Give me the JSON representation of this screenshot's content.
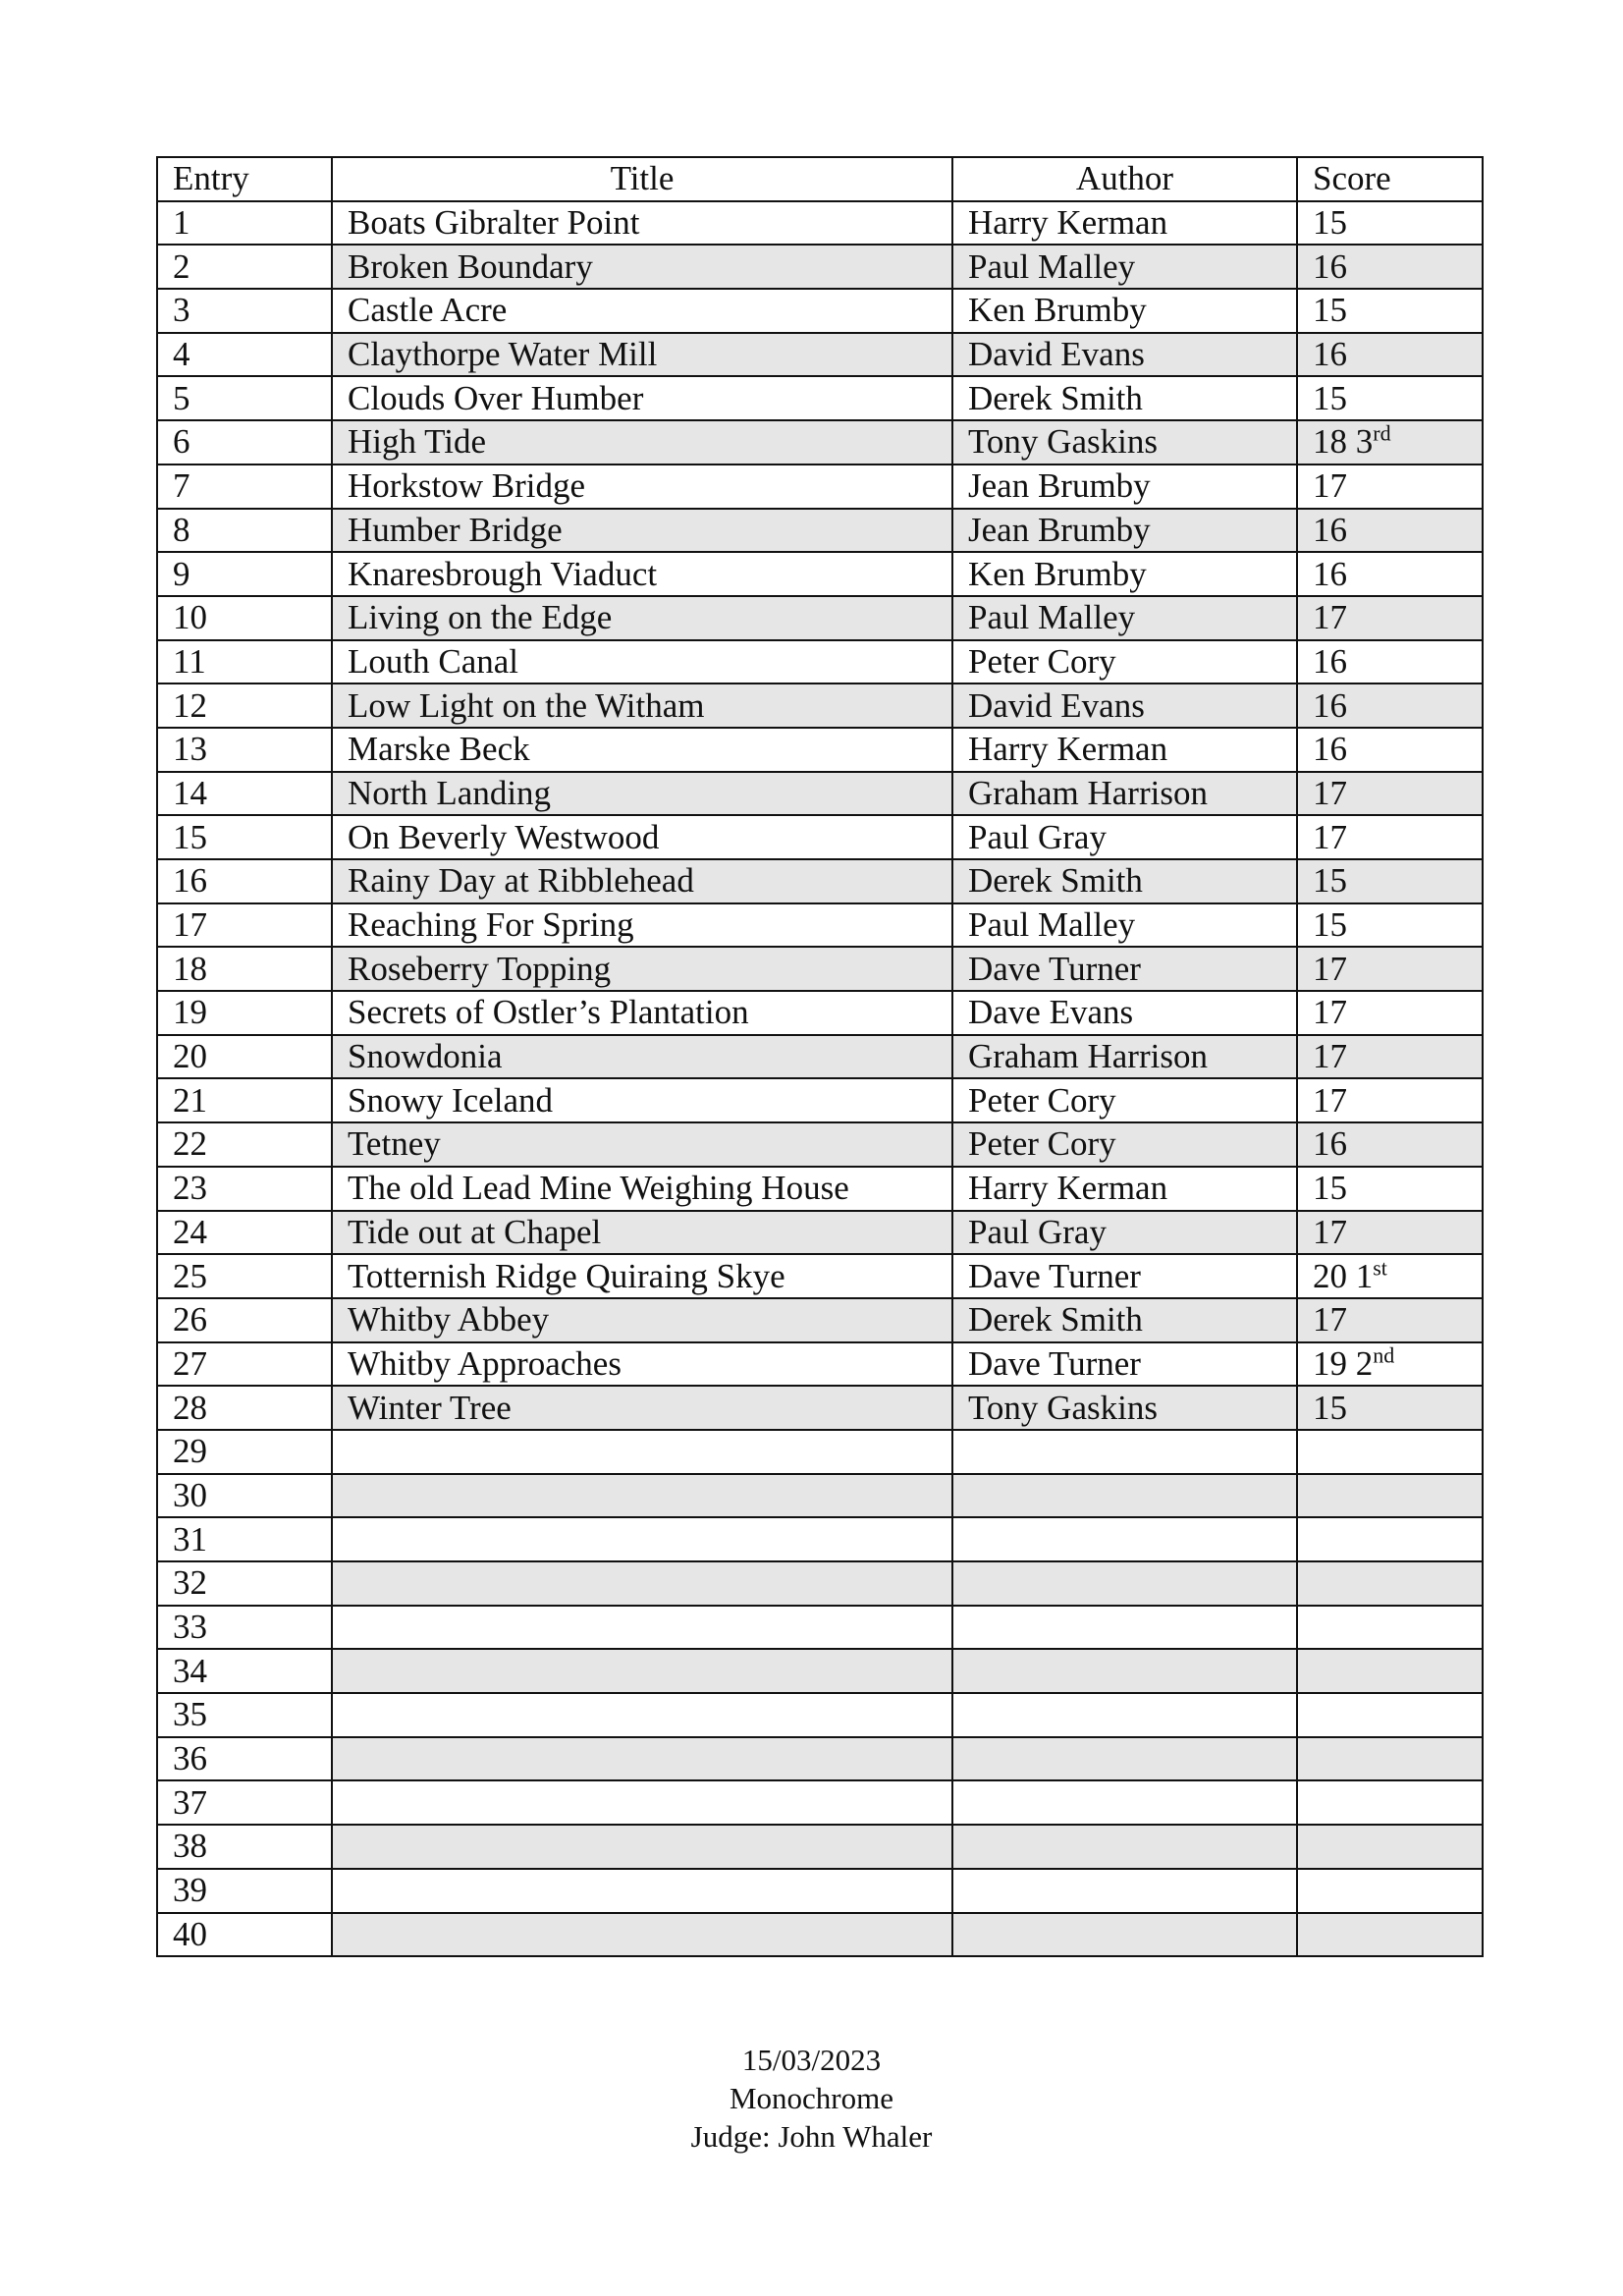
{
  "headers": {
    "entry": "Entry",
    "title": "Title",
    "author": "Author",
    "score": "Score"
  },
  "rows": [
    {
      "entry": "1",
      "title": "Boats Gibralter Point",
      "author": "Harry Kerman",
      "score": "15",
      "place": ""
    },
    {
      "entry": "2",
      "title": "Broken Boundary",
      "author": "Paul Malley",
      "score": "16",
      "place": ""
    },
    {
      "entry": "3",
      "title": "Castle Acre",
      "author": "Ken Brumby",
      "score": "15",
      "place": ""
    },
    {
      "entry": "4",
      "title": "Claythorpe Water Mill",
      "author": "David Evans",
      "score": "16",
      "place": ""
    },
    {
      "entry": "5",
      "title": "Clouds Over Humber",
      "author": "Derek Smith",
      "score": "15",
      "place": ""
    },
    {
      "entry": "6",
      "title": "High Tide",
      "author": "Tony Gaskins",
      "score": "18 3",
      "place": "rd"
    },
    {
      "entry": "7",
      "title": "Horkstow Bridge",
      "author": "Jean Brumby",
      "score": "17",
      "place": ""
    },
    {
      "entry": "8",
      "title": "Humber Bridge",
      "author": "Jean Brumby",
      "score": "16",
      "place": ""
    },
    {
      "entry": "9",
      "title": "Knaresbrough Viaduct",
      "author": "Ken Brumby",
      "score": "16",
      "place": ""
    },
    {
      "entry": "10",
      "title": "Living on the Edge",
      "author": "Paul Malley",
      "score": "17",
      "place": ""
    },
    {
      "entry": "11",
      "title": "Louth Canal",
      "author": "Peter Cory",
      "score": "16",
      "place": ""
    },
    {
      "entry": "12",
      "title": "Low Light on the Witham",
      "author": "David Evans",
      "score": "16",
      "place": ""
    },
    {
      "entry": "13",
      "title": "Marske Beck",
      "author": "Harry Kerman",
      "score": "16",
      "place": ""
    },
    {
      "entry": "14",
      "title": "North Landing",
      "author": "Graham Harrison",
      "score": "17",
      "place": ""
    },
    {
      "entry": "15",
      "title": "On Beverly Westwood",
      "author": "Paul Gray",
      "score": "17",
      "place": ""
    },
    {
      "entry": "16",
      "title": "Rainy Day at Ribblehead",
      "author": "Derek Smith",
      "score": "15",
      "place": ""
    },
    {
      "entry": "17",
      "title": "Reaching For Spring",
      "author": "Paul Malley",
      "score": "15",
      "place": ""
    },
    {
      "entry": "18",
      "title": "Roseberry Topping",
      "author": "Dave Turner",
      "score": "17",
      "place": ""
    },
    {
      "entry": "19",
      "title": "Secrets of Ostler’s Plantation",
      "author": "Dave Evans",
      "score": "17",
      "place": ""
    },
    {
      "entry": "20",
      "title": "Snowdonia",
      "author": "Graham Harrison",
      "score": "17",
      "place": ""
    },
    {
      "entry": "21",
      "title": "Snowy Iceland",
      "author": "Peter Cory",
      "score": "17",
      "place": ""
    },
    {
      "entry": "22",
      "title": "Tetney",
      "author": "Peter Cory",
      "score": "16",
      "place": ""
    },
    {
      "entry": "23",
      "title": "The old Lead Mine Weighing House",
      "author": "Harry Kerman",
      "score": "15",
      "place": ""
    },
    {
      "entry": "24",
      "title": "Tide out at Chapel",
      "author": "Paul Gray",
      "score": "17",
      "place": ""
    },
    {
      "entry": "25",
      "title": "Totternish Ridge Quiraing Skye",
      "author": "Dave Turner",
      "score": "20 1",
      "place": "st"
    },
    {
      "entry": "26",
      "title": "Whitby Abbey",
      "author": "Derek Smith",
      "score": "17",
      "place": ""
    },
    {
      "entry": "27",
      "title": "Whitby Approaches",
      "author": "Dave Turner",
      "score": "19 2",
      "place": "nd"
    },
    {
      "entry": "28",
      "title": "Winter Tree",
      "author": "Tony Gaskins",
      "score": "15",
      "place": ""
    },
    {
      "entry": "29",
      "title": "",
      "author": "",
      "score": "",
      "place": ""
    },
    {
      "entry": "30",
      "title": "",
      "author": "",
      "score": "",
      "place": ""
    },
    {
      "entry": "31",
      "title": "",
      "author": "",
      "score": "",
      "place": ""
    },
    {
      "entry": "32",
      "title": "",
      "author": "",
      "score": "",
      "place": ""
    },
    {
      "entry": "33",
      "title": "",
      "author": "",
      "score": "",
      "place": ""
    },
    {
      "entry": "34",
      "title": "",
      "author": "",
      "score": "",
      "place": ""
    },
    {
      "entry": "35",
      "title": "",
      "author": "",
      "score": "",
      "place": ""
    },
    {
      "entry": "36",
      "title": "",
      "author": "",
      "score": "",
      "place": ""
    },
    {
      "entry": "37",
      "title": "",
      "author": "",
      "score": "",
      "place": ""
    },
    {
      "entry": "38",
      "title": "",
      "author": "",
      "score": "",
      "place": ""
    },
    {
      "entry": "39",
      "title": "",
      "author": "",
      "score": "",
      "place": ""
    },
    {
      "entry": "40",
      "title": "",
      "author": "",
      "score": "",
      "place": ""
    }
  ],
  "footer": {
    "date": "15/03/2023",
    "category": "Monochrome",
    "judge": "Judge: John Whaler"
  },
  "colors": {
    "shade": "#e6e6e6",
    "border": "#111111"
  }
}
